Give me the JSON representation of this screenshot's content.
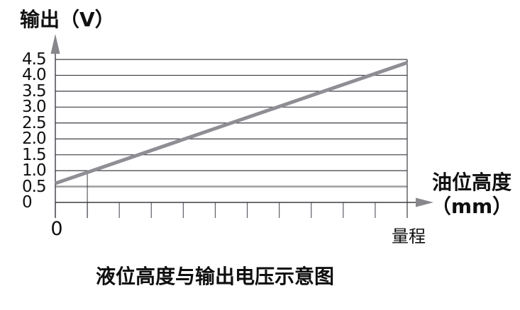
{
  "labels": {
    "y_axis_title": "输出（V）",
    "x_axis_title_line1": "油位高度",
    "x_axis_title_line2": "（mm）",
    "x_tick_start": "0",
    "x_tick_end": "量程",
    "caption": "液位高度与输出电压示意图"
  },
  "colors": {
    "text": "#111111",
    "grid": "#3d3d44",
    "axis": "#3d3d44",
    "tick": "#5f5f66",
    "data_line": "#8e8e94",
    "reference_line": "#a0a0a3",
    "arrow": "#87878c",
    "background": "#ffffff"
  },
  "chart_data": {
    "type": "line",
    "title": "液位高度与输出电压示意图",
    "xlabel": "油位高度（mm）",
    "ylabel": "输出（V）",
    "x_range_labels": [
      "0",
      "量程"
    ],
    "ylim": [
      0,
      4.5
    ],
    "y_ticks": [
      {
        "v": 4.5,
        "label": "4.5"
      },
      {
        "v": 4.0,
        "label": "4.0"
      },
      {
        "v": 3.5,
        "label": "3.5"
      },
      {
        "v": 3.0,
        "label": "3.0"
      },
      {
        "v": 2.5,
        "label": "2.5"
      },
      {
        "v": 2.0,
        "label": "2.0"
      },
      {
        "v": 1.5,
        "label": "1.5"
      },
      {
        "v": 1.0,
        "label": "1.0"
      },
      {
        "v": 0.5,
        "label": "0.5"
      },
      {
        "v": 0,
        "label": "0"
      }
    ],
    "x_tick_count": 12,
    "grid": true,
    "legend": false,
    "series": [
      {
        "name": "输出电压",
        "x_fraction": [
          0,
          1
        ],
        "values": [
          0.6,
          4.4
        ]
      }
    ],
    "reference": {
      "horizontal_value": 0.5,
      "marker_tick_index": 1,
      "marker_value": 1.0
    }
  }
}
